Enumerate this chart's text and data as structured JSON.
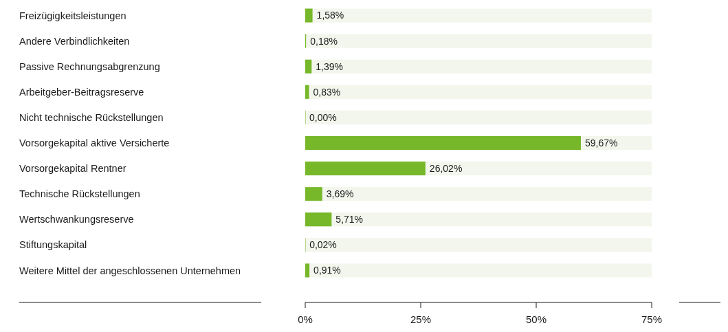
{
  "chart_data": {
    "type": "bar",
    "orientation": "horizontal",
    "categories": [
      "Freizügigkeitsleistungen",
      "Andere Verbindlichkeiten",
      "Passive Rechnungsabgrenzung",
      "Arbeitgeber-Beitragsreserve",
      "Nicht technische Rückstellungen",
      "Vorsorgekapital aktive Versicherte",
      "Vorsorgekapital Rentner",
      "Technische Rückstellungen",
      "Wertschwankungsreserve",
      "Stiftungskapital",
      "Weitere Mittel der angeschlossenen Unternehmen"
    ],
    "values": [
      1.58,
      0.18,
      1.39,
      0.83,
      0.0,
      59.67,
      26.02,
      3.69,
      5.71,
      0.02,
      0.91
    ],
    "value_labels": [
      "1,58%",
      "0,18%",
      "1,39%",
      "0,83%",
      "0,00%",
      "59,67%",
      "26,02%",
      "3,69%",
      "5,71%",
      "0,02%",
      "0,91%"
    ],
    "color": "#76b82a",
    "xlim": [
      0,
      75
    ],
    "xticks": [
      {
        "value": 0,
        "label": "0%"
      },
      {
        "value": 25,
        "label": "25%"
      },
      {
        "value": 50,
        "label": "50%"
      },
      {
        "value": 75,
        "label": "75%"
      }
    ],
    "grid": false
  }
}
